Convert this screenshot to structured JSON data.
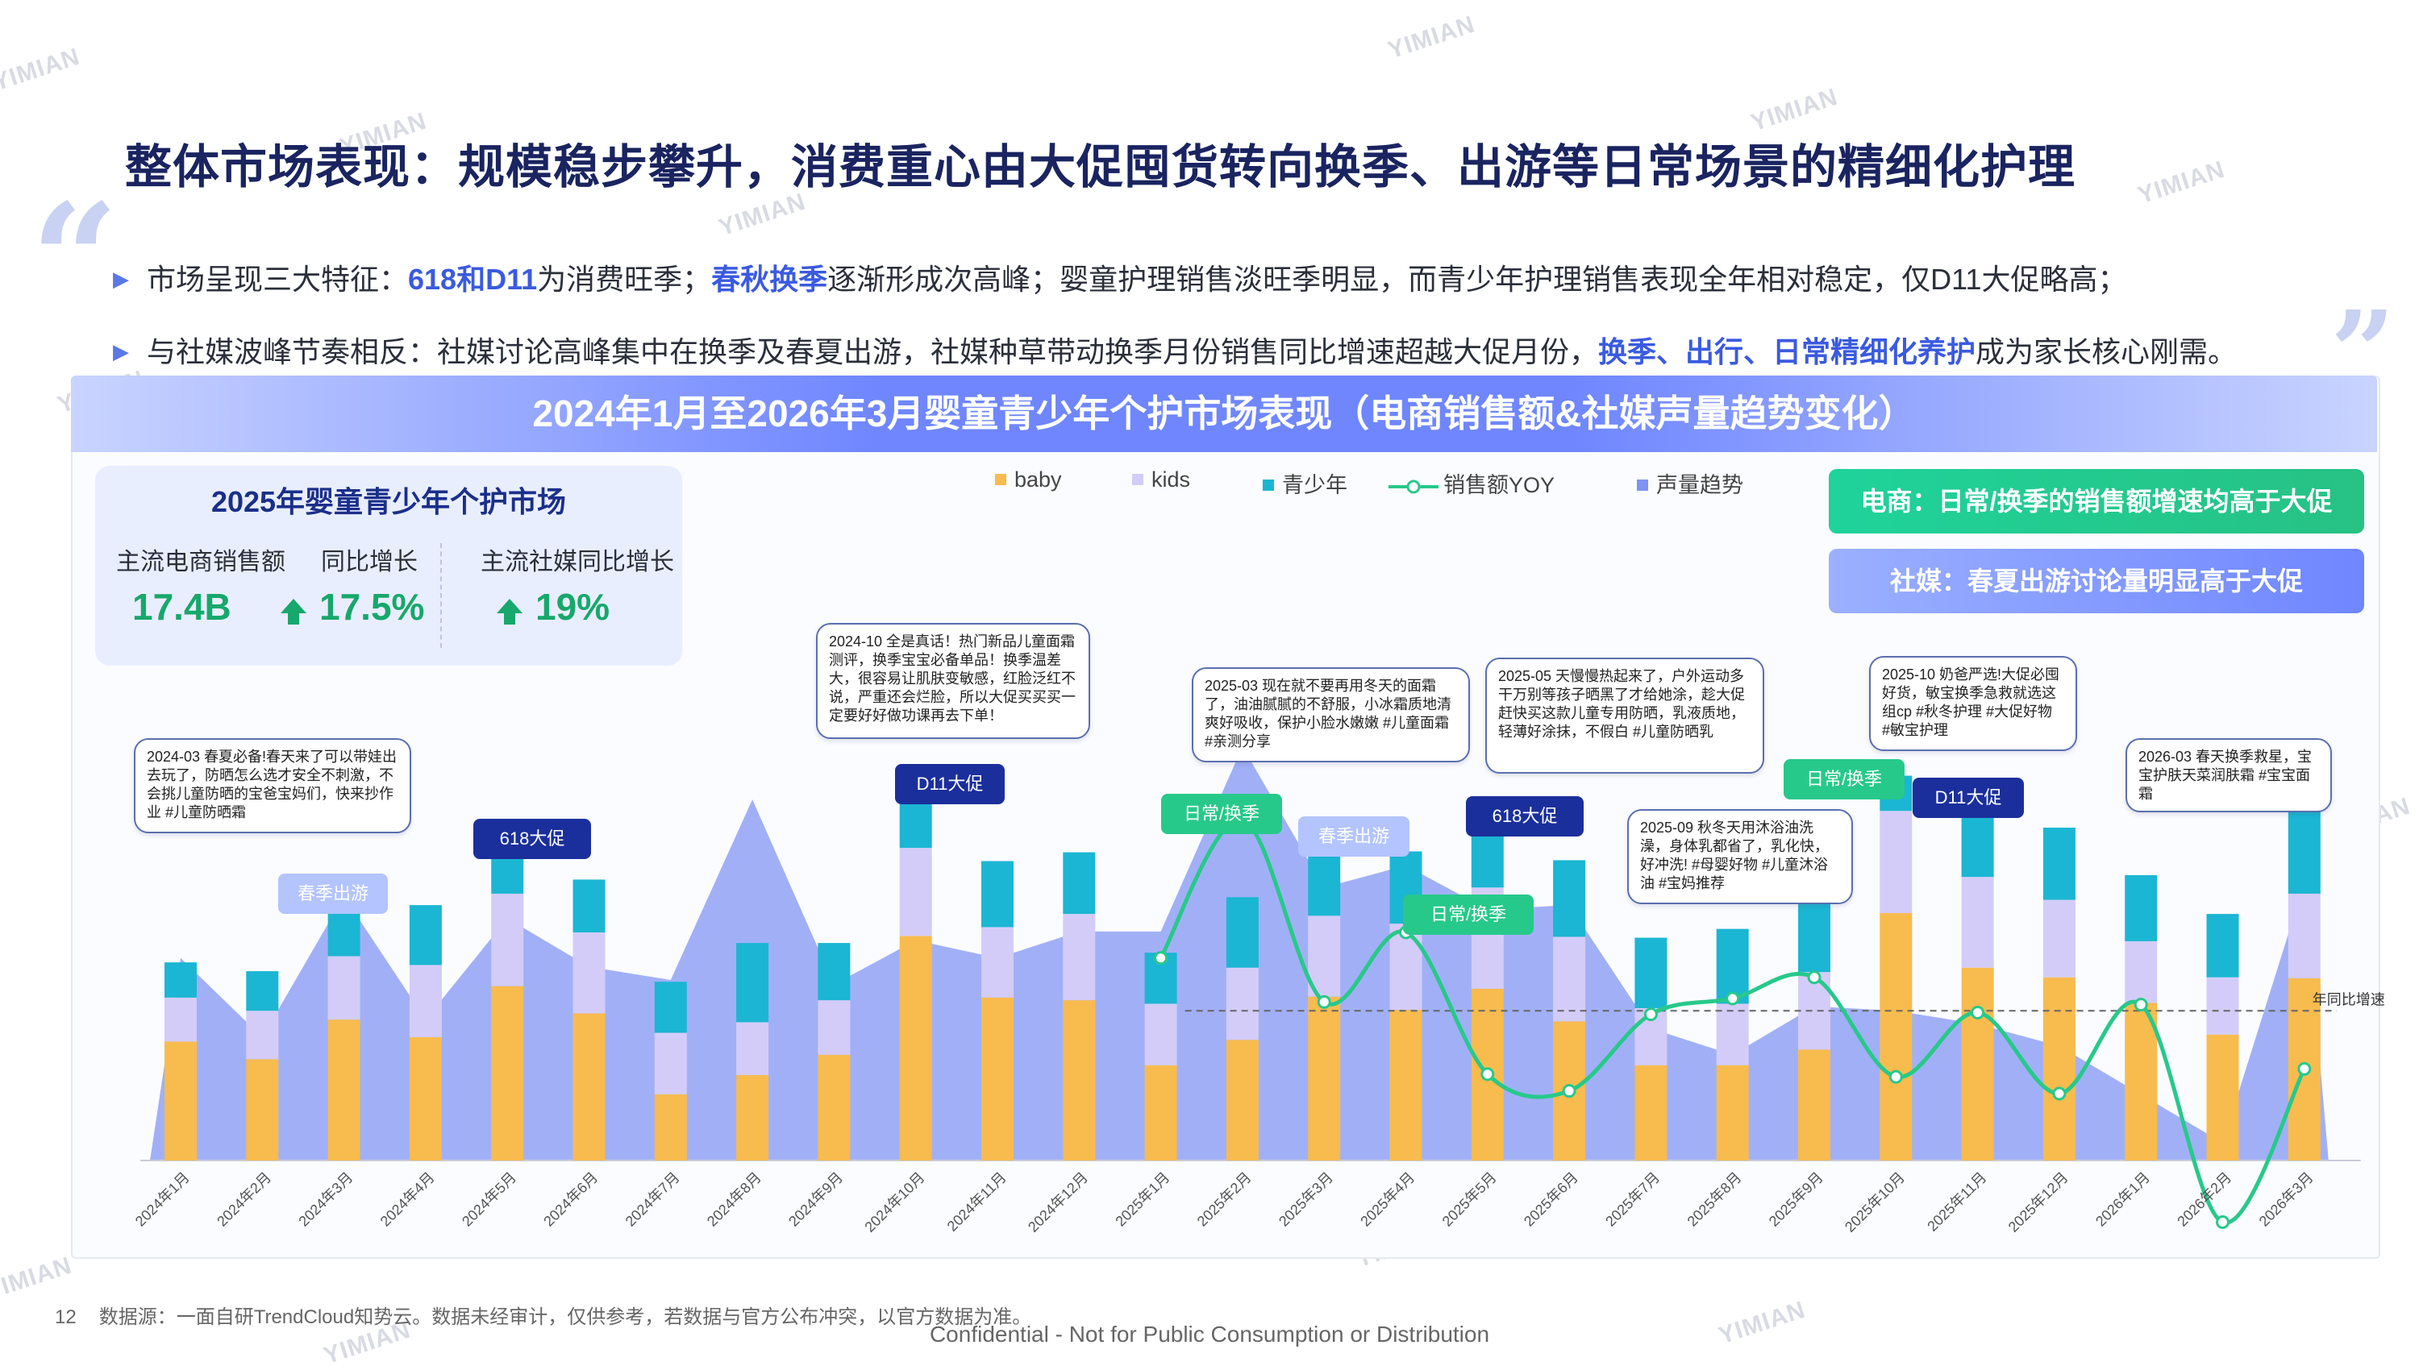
{
  "title": "整体市场表现：规模稳步攀升，消费重心由大促囤货转向换季、出游等日常场景的精细化护理",
  "bullets": {
    "b1": {
      "pre": "市场呈现三大特征：",
      "hl1": "618和D11",
      "mid1": "为消费旺季；",
      "hl2": "春秋换季",
      "post": "逐渐形成次高峰；婴童护理销售淡旺季明显，而青少年护理销售表现全年相对稳定，仅D11大促略高；"
    },
    "b2": {
      "pre": "与社媒波峰节奏相反：社媒讨论高峰集中在换季及春夏出游，社媒种草带动换季月份销售同比增速超越大促月份，",
      "hl": "换季、出行、日常精细化养护",
      "post": "成为家长核心刚需。"
    }
  },
  "chart_title": "2024年1月至2026年3月婴童青少年个护市场表现（电商销售额&社媒声量趋势变化）",
  "kpi": {
    "title": "2025年婴童青少年个护市场",
    "labels": [
      "主流电商销售额",
      "同比增长",
      "主流社媒同比增长"
    ],
    "values": [
      "17.4B",
      "17.5%",
      "19%"
    ]
  },
  "side_notes": [
    "电商：日常/换季的销售额增速均高于大促",
    "社媒：春夏出游讨论量明显高于大促"
  ],
  "legend": [
    "baby",
    "kids",
    "青少年",
    "销售额YOY",
    "声量趋势"
  ],
  "colors": {
    "baby": "#f8bb4e",
    "kids": "#d3ccf8",
    "teen": "#1bb6d3",
    "yoy": "#27c98a",
    "volume": "#7e93f2",
    "navy": "#1b2f9c"
  },
  "yoy_ref_label": "年同比增速",
  "bubbles": [
    "2024-03 春夏必备!春天来了可以带娃出去玩了，防晒怎么选才安全不刺激，不会挑儿童防晒的宝爸宝妈们，快来抄作业 #儿童防晒霜",
    "2024-10 全是真话！热门新品儿童面霜测评，换季宝宝必备单品！换季温差大，很容易让肌肤变敏感，红脸泛红不说，严重还会烂脸，所以大促买买买一定要好好做功课再去下单！",
    "2025-03 现在就不要再用冬天的面霜了，油油腻腻的不舒服，小冰霜质地清爽好吸收，保护小脸水嫩嫩 #儿童面霜 #亲测分享",
    "2025-05 天慢慢热起来了，户外运动多干万别等孩子晒黑了才给她涂，趁大促赶快买这款儿童专用防晒，乳液质地，轻薄好涂抹，不假白 #儿童防晒乳",
    "2025-09 秋冬天用沐浴油洗澡，身体乳都省了，乳化快，好冲洗! #母婴好物 #儿童沐浴油 #宝妈推荐",
    "2025-10 奶爸严选!大促必囤好货，敏宝换季急救就选这组cp #秋冬护理 #大促好物 #敏宝护理",
    "2026-03 春天换季救星，宝宝护肤天菜润肤霜 #宝宝面霜"
  ],
  "tags": [
    "春季出游",
    "618大促",
    "D11大促",
    "日常/换季",
    "春季出游",
    "日常/换季",
    "618大促",
    "日常/换季",
    "D11大促"
  ],
  "footer": {
    "page": "12",
    "source": "数据源：一面自研TrendCloud知势云。数据未经审计，仅供参考，若数据与官方公布冲突，以官方数据为准。"
  },
  "confidential": "Confidential - Not for Public Consumption or Distribution",
  "watermark": "YIMIAN",
  "chart_data": {
    "type": "bar",
    "stacked": true,
    "categories": [
      "2024年1月",
      "2024年2月",
      "2024年3月",
      "2024年4月",
      "2024年5月",
      "2024年6月",
      "2024年7月",
      "2024年8月",
      "2024年9月",
      "2024年10月",
      "2024年11月",
      "2024年12月",
      "2025年1月",
      "2025年2月",
      "2025年3月",
      "2025年4月",
      "2025年5月",
      "2025年6月",
      "2025年7月",
      "2025年8月",
      "2025年9月",
      "2025年10月",
      "2025年11月",
      "2025年12月",
      "2026年1月",
      "2026年2月",
      "2026年3月"
    ],
    "series": [
      {
        "name": "baby",
        "values": [
          135,
          115,
          160,
          140,
          198,
          167,
          75,
          97,
          120,
          255,
          185,
          182,
          108,
          137,
          186,
          171,
          195,
          158,
          108,
          108,
          126,
          281,
          219,
          208,
          179,
          143,
          207
        ]
      },
      {
        "name": "kids",
        "values": [
          50,
          55,
          72,
          82,
          105,
          92,
          70,
          60,
          62,
          100,
          80,
          98,
          70,
          82,
          92,
          98,
          115,
          96,
          65,
          70,
          88,
          116,
          103,
          88,
          70,
          65,
          96
        ]
      },
      {
        "name": "青少年",
        "values": [
          40,
          45,
          70,
          68,
          65,
          60,
          58,
          90,
          65,
          80,
          75,
          70,
          58,
          80,
          88,
          82,
          70,
          87,
          80,
          85,
          95,
          40,
          85,
          82,
          75,
          72,
          95
        ]
      }
    ],
    "line_series": [
      {
        "name": "销售额YOY",
        "values": [
          null,
          null,
          null,
          null,
          null,
          null,
          null,
          null,
          null,
          null,
          null,
          null,
          230,
          387,
          180,
          259,
          98,
          79,
          166,
          184,
          208,
          95,
          168,
          76,
          177,
          -70,
          104
        ]
      },
      {
        "name": "声量趋势",
        "values": [
          230,
          140,
          300,
          160,
          275,
          220,
          205,
          410,
          200,
          250,
          230,
          260,
          260,
          470,
          310,
          335,
          285,
          290,
          150,
          120,
          175,
          170,
          155,
          130,
          75,
          20,
          315
        ]
      }
    ],
    "yoy_reference": 170,
    "ylim": [
      -90,
      540
    ]
  }
}
